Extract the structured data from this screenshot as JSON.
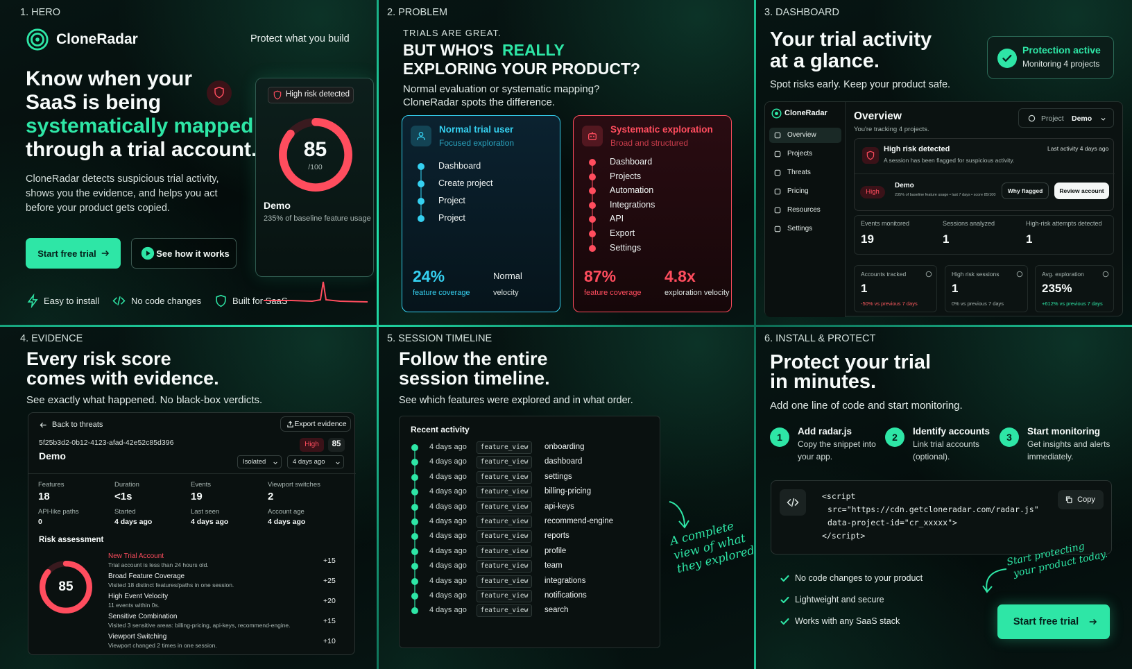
{
  "hero": {
    "label": "1. HERO",
    "brand": "CloneRadar",
    "tagline": "Protect what you build",
    "headline": [
      "Know when your",
      "SaaS is being",
      "systematically mapped",
      "through a trial account."
    ],
    "body": [
      "CloneRadar detects suspicious trial activity,",
      "shows you the evidence, and helps you act",
      "before your product gets copied."
    ],
    "cta_primary": "Start free trial",
    "cta_secondary": "See how it works",
    "card": {
      "badge": "High risk detected",
      "score": "85",
      "score_max": "/100",
      "name": "Demo",
      "detail": "235% of baseline feature usage"
    },
    "features": [
      "Easy to install",
      "No code changes",
      "Built for SaaS"
    ]
  },
  "problem": {
    "label": "2. PROBLEM",
    "eyebrow": "TRIALS ARE GREAT.",
    "title_a": "BUT WHO'S",
    "title_highlight": "REALLY",
    "title_b": "EXPLORING YOUR PRODUCT?",
    "subtitle": [
      "Normal evaluation or systematic mapping?",
      "CloneRadar spots the difference."
    ],
    "normal": {
      "title": "Normal trial user",
      "subtitle": "Focused exploration",
      "steps": [
        "Dashboard",
        "Create project",
        "Project",
        "Project"
      ],
      "stats": [
        {
          "value": "24%",
          "label": "feature coverage"
        },
        {
          "value": "Normal",
          "label": "velocity"
        }
      ]
    },
    "systematic": {
      "title": "Systematic exploration",
      "subtitle": "Broad and structured",
      "steps": [
        "Dashboard",
        "Projects",
        "Automation",
        "Integrations",
        "API",
        "Export",
        "Settings"
      ],
      "stats": [
        {
          "value": "87%",
          "label": "feature coverage"
        },
        {
          "value": "4.8x",
          "label": "exploration velocity"
        }
      ]
    }
  },
  "dashboard": {
    "label": "3. DASHBOARD",
    "title": [
      "Your trial activity",
      "at a glance."
    ],
    "subtitle": "Spot risks early. Keep your product safe.",
    "status": {
      "title": "Protection active",
      "detail": "Monitoring 4 projects"
    },
    "app": {
      "brand": "CloneRadar",
      "nav": [
        "Overview",
        "Projects",
        "Threats",
        "Pricing",
        "Resources",
        "Settings"
      ],
      "heading": "Overview",
      "tracking": "You're tracking 4 projects.",
      "project_label": "Project",
      "project": "Demo",
      "alert": {
        "title": "High risk detected",
        "detail": "A session has been flagged for suspicious activity.",
        "time": "Last activity 4 days ago",
        "level": "High",
        "name": "Demo",
        "meta": "235% of baseline feature usage • last 7 days • score 85/100",
        "actions": [
          "Why flagged",
          "Review account"
        ]
      },
      "stats": [
        {
          "label": "Events monitored",
          "value": "19"
        },
        {
          "label": "Sessions analyzed",
          "value": "1"
        },
        {
          "label": "High-risk attempts detected",
          "value": "1"
        }
      ],
      "kpis": [
        {
          "label": "Accounts tracked",
          "value": "1",
          "change": "-50% vs previous 7 days"
        },
        {
          "label": "High risk sessions",
          "value": "1",
          "change": "0% vs previous 7 days"
        },
        {
          "label": "Avg. exploration",
          "value": "235%",
          "change": "+612% vs previous 7 days"
        }
      ]
    }
  },
  "evidence": {
    "label": "4. EVIDENCE",
    "title": [
      "Every risk score",
      "comes with evidence."
    ],
    "subtitle": "See exactly what happened. No black-box verdicts.",
    "back": "Back to threats",
    "export": "Export evidence",
    "id": "5f25b3d2-0b12-4123-afad-42e52c85d396",
    "level": "High",
    "score": "85",
    "name": "Demo",
    "filters": [
      "Isolated",
      "4 days ago"
    ],
    "facts": [
      {
        "label": "Features",
        "value": "18"
      },
      {
        "label": "Duration",
        "value": "<1s"
      },
      {
        "label": "Events",
        "value": "19"
      },
      {
        "label": "Viewport switches",
        "value": "2"
      },
      {
        "label": "API-like paths",
        "value": "0"
      },
      {
        "label": "Started",
        "value": "4 days ago"
      },
      {
        "label": "Last seen",
        "value": "4 days ago"
      },
      {
        "label": "Account age",
        "value": "4 days ago"
      }
    ],
    "risk_title": "Risk assessment",
    "risk_score": "85",
    "factors": [
      {
        "title": "New Trial Account",
        "detail": "Trial account is less than 24 hours old.",
        "points": "+15"
      },
      {
        "title": "Broad Feature Coverage",
        "detail": "Visited 18 distinct features/paths in one session.",
        "points": "+25"
      },
      {
        "title": "High Event Velocity",
        "detail": "11 events within 0s.",
        "points": "+20"
      },
      {
        "title": "Sensitive Combination",
        "detail": "Visited 3 sensitive areas: billing-pricing, api-keys, recommend-engine.",
        "points": "+15"
      },
      {
        "title": "Viewport Switching",
        "detail": "Viewport changed 2 times in one session.",
        "points": "+10"
      }
    ]
  },
  "timeline": {
    "label": "5. SESSION TIMELINE",
    "title": [
      "Follow the entire",
      "session timeline."
    ],
    "subtitle": "See which features were explored and in what order.",
    "list_title": "Recent activity",
    "events": [
      {
        "time": "4 days ago",
        "type": "feature_view",
        "feature": "onboarding"
      },
      {
        "time": "4 days ago",
        "type": "feature_view",
        "feature": "dashboard"
      },
      {
        "time": "4 days ago",
        "type": "feature_view",
        "feature": "settings"
      },
      {
        "time": "4 days ago",
        "type": "feature_view",
        "feature": "billing-pricing"
      },
      {
        "time": "4 days ago",
        "type": "feature_view",
        "feature": "api-keys"
      },
      {
        "time": "4 days ago",
        "type": "feature_view",
        "feature": "recommend-engine"
      },
      {
        "time": "4 days ago",
        "type": "feature_view",
        "feature": "reports"
      },
      {
        "time": "4 days ago",
        "type": "feature_view",
        "feature": "profile"
      },
      {
        "time": "4 days ago",
        "type": "feature_view",
        "feature": "team"
      },
      {
        "time": "4 days ago",
        "type": "feature_view",
        "feature": "integrations"
      },
      {
        "time": "4 days ago",
        "type": "feature_view",
        "feature": "notifications"
      },
      {
        "time": "4 days ago",
        "type": "feature_view",
        "feature": "search"
      }
    ],
    "annotation": [
      "A complete",
      "view of what",
      "they explored."
    ]
  },
  "install": {
    "label": "6. INSTALL & PROTECT",
    "title": [
      "Protect your trial",
      "in minutes."
    ],
    "subtitle": "Add one line of code and start monitoring.",
    "steps": [
      {
        "n": "1",
        "title": "Add radar.js",
        "detail": [
          "Copy the snippet into",
          "your app."
        ]
      },
      {
        "n": "2",
        "title": "Identify accounts",
        "detail": [
          "Link trial accounts",
          "(optional)."
        ]
      },
      {
        "n": "3",
        "title": "Start monitoring",
        "detail": [
          "Get insights and alerts",
          "immediately."
        ]
      }
    ],
    "code": [
      "<script",
      "src=\"https://cdn.getcloneradar.com/radar.js\"",
      "data-project-id=\"cr_xxxxx\">",
      "</script>"
    ],
    "copy": "Copy",
    "checks": [
      "No code changes to your product",
      "Lightweight and secure",
      "Works with any SaaS stack"
    ],
    "annotation": [
      "Start protecting",
      "your product today."
    ],
    "cta": "Start free trial"
  }
}
